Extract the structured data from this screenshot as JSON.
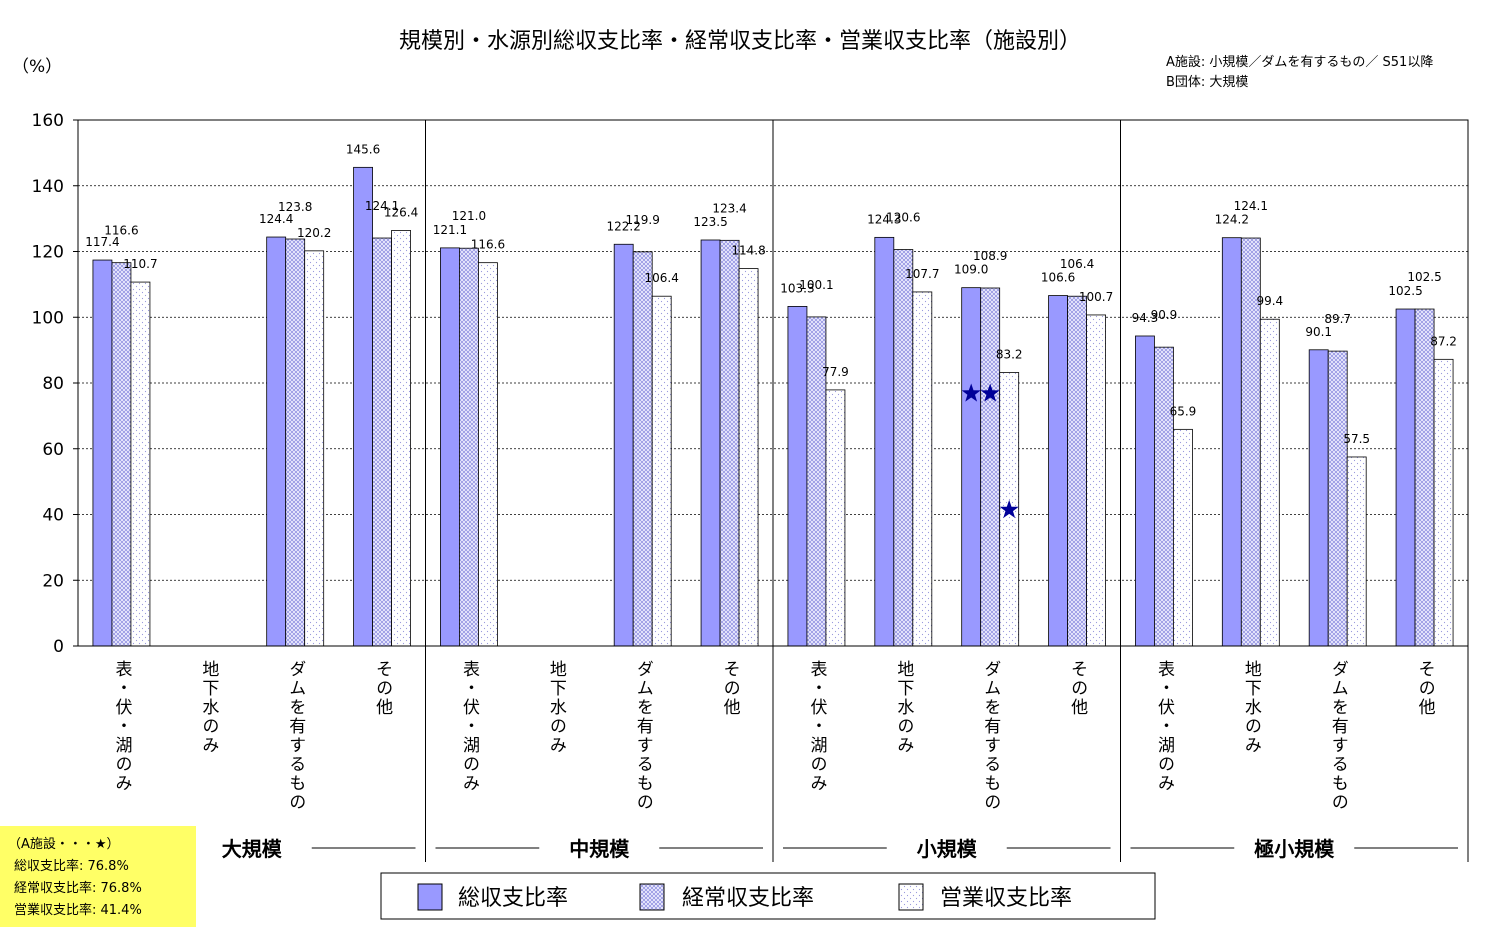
{
  "chart_data": {
    "type": "bar",
    "title": "規模別・水源別総収支比率・経常収支比率・営業収支比率（施設別）",
    "ylabel": "（%）",
    "ylim": [
      0,
      160
    ],
    "yticks": [
      "0",
      "20",
      "40",
      "60",
      "80",
      "100",
      "120",
      "140",
      "160"
    ],
    "grid": true,
    "legend_position": "bottom",
    "notes": [
      "A施設: 小規模／ダムを有するもの／ S51以降",
      "B団体: 大規模"
    ],
    "groups": [
      "大規模",
      "中規模",
      "小規模",
      "極小規模"
    ],
    "categories": [
      "表・伏・湖のみ",
      "地下水のみ",
      "ダムを有するもの",
      "その他",
      "表・伏・湖のみ",
      "地下水のみ",
      "ダムを有するもの",
      "その他",
      "表・伏・湖のみ",
      "地下水のみ",
      "ダムを有するもの",
      "その他",
      "表・伏・湖のみ",
      "地下水のみ",
      "ダムを有するもの",
      "その他"
    ],
    "category_groups": [
      0,
      0,
      0,
      0,
      1,
      1,
      1,
      1,
      2,
      2,
      2,
      2,
      3,
      3,
      3,
      3
    ],
    "series": [
      {
        "name": "総収支比率",
        "color": "#9999ff",
        "pattern": "solid",
        "values": [
          117.4,
          null,
          124.4,
          145.6,
          121.1,
          null,
          122.2,
          123.5,
          103.3,
          124.3,
          109.0,
          106.6,
          94.3,
          124.2,
          90.1,
          102.5
        ],
        "labels": [
          "117.4",
          "",
          "124.4",
          "145.6",
          "121.1",
          "",
          "122.2",
          "123.5",
          "103.3",
          "124.3",
          "109.0",
          "106.6",
          "94.3",
          "124.2",
          "90.1",
          "102.5"
        ]
      },
      {
        "name": "経常収支比率",
        "color": "#ccccff",
        "pattern": "crosshatch",
        "values": [
          116.6,
          null,
          123.8,
          124.1,
          121.0,
          null,
          119.9,
          123.4,
          100.1,
          120.6,
          108.9,
          106.4,
          90.9,
          124.1,
          89.7,
          102.5
        ],
        "labels": [
          "116.6",
          "",
          "123.8",
          "124.1",
          "121.0",
          "",
          "119.9",
          "123.4",
          "100.1",
          "120.6",
          "108.9",
          "106.4",
          "90.9",
          "124.1",
          "89.7",
          "102.5"
        ]
      },
      {
        "name": "営業収支比率",
        "color": "#ffffff",
        "pattern": "dotted",
        "values": [
          110.7,
          null,
          120.2,
          126.4,
          116.6,
          null,
          106.4,
          114.8,
          77.9,
          107.7,
          83.2,
          100.7,
          65.9,
          99.4,
          57.5,
          87.2
        ],
        "labels": [
          "110.7",
          "",
          "120.2",
          "126.4",
          "116.6",
          "",
          "106.4",
          "114.8",
          "77.9",
          "107.7",
          "83.2",
          "100.7",
          "65.9",
          "99.4",
          "57.5",
          "87.2"
        ]
      }
    ],
    "markers": [
      {
        "category_index": 10,
        "series_index": 0,
        "value": 76.8
      },
      {
        "category_index": 10,
        "series_index": 1,
        "value": 76.8
      },
      {
        "category_index": 10,
        "series_index": 2,
        "value": 41.4
      }
    ],
    "annotation_box": {
      "lines": [
        "（A施設・・・★）",
        "総収支比率: 76.8%",
        "経常収支比率: 76.8%",
        "営業収支比率: 41.4%"
      ],
      "background": "#ffff66"
    }
  }
}
